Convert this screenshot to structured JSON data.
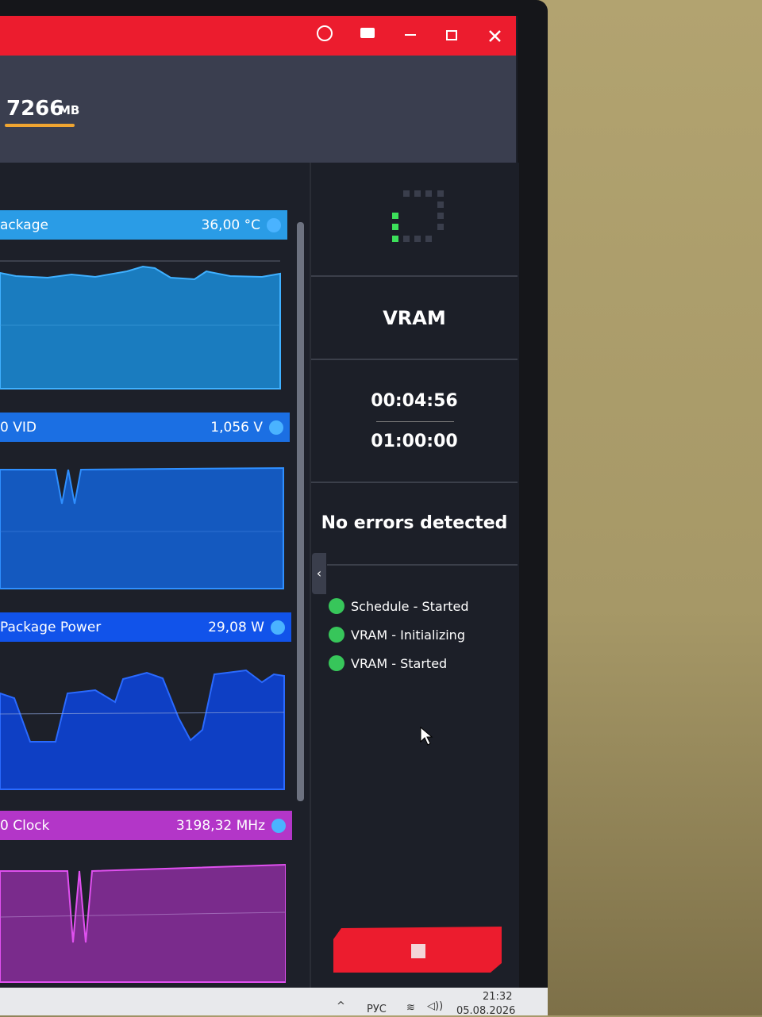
{
  "header": {
    "memory_value": "7266",
    "memory_unit": "MB"
  },
  "panels": [
    {
      "title": "ackage",
      "value": "36,00 °C"
    },
    {
      "title": "0 VID",
      "value": "1,056 V"
    },
    {
      "title": "Package Power",
      "value": "29,08 W"
    },
    {
      "title": "0 Clock",
      "value": "3198,32 MHz"
    }
  ],
  "status": {
    "test": "VRAM",
    "elapsed": "00:04:56",
    "duration": "01:00:00",
    "result": "No errors detected",
    "log": [
      "Schedule - Started",
      "VRAM - Initializing",
      "VRAM - Started"
    ]
  },
  "taskbar": {
    "language": "РУС",
    "time": "21:32",
    "date": "05.08.2026"
  }
}
